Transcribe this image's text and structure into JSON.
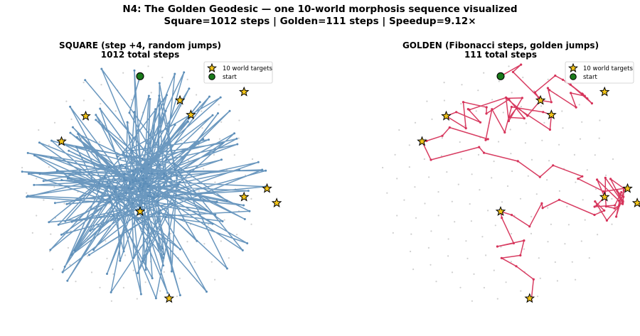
{
  "figure": {
    "title_line1": "N4: The Golden Geodesic — one 10-world morphosis sequence visualized",
    "title_line2": "Square=1012 steps  |  Golden=111 steps  |  Speedup=9.12×"
  },
  "chart_data": [
    {
      "type": "line",
      "title_line1": "SQUARE (step +4, random jumps)",
      "title_line2": "1012 total steps",
      "total_steps": 1012,
      "path_color": "#5b8db8",
      "grid_points": 144,
      "axes_visible": false,
      "xlim": [
        -1.05,
        1.05
      ],
      "ylim": [
        -1.05,
        1.05
      ],
      "start": {
        "x": 0.0,
        "y": 0.91
      },
      "targets": [
        {
          "x": 0.86,
          "y": 0.78
        },
        {
          "x": 0.33,
          "y": 0.71
        },
        {
          "x": -0.45,
          "y": 0.58
        },
        {
          "x": 0.42,
          "y": 0.59
        },
        {
          "x": -0.65,
          "y": 0.37
        },
        {
          "x": 1.05,
          "y": -0.02
        },
        {
          "x": 0.86,
          "y": -0.09
        },
        {
          "x": 1.13,
          "y": -0.14
        },
        {
          "x": 0.0,
          "y": -0.21
        },
        {
          "x": 0.24,
          "y": -0.93
        }
      ],
      "legend": {
        "position": "top-right",
        "entries": [
          {
            "label": "10 world targets",
            "marker": "star"
          },
          {
            "label": "start",
            "marker": "circle"
          }
        ]
      },
      "colors": {
        "target_fill": "#f2c41a",
        "start_fill": "#1a7a1a"
      }
    },
    {
      "type": "line",
      "title_line1": "GOLDEN (Fibonacci steps, golden jumps)",
      "title_line2": "111 total steps",
      "total_steps": 111,
      "path_color": "#d6335a",
      "grid_points": 144,
      "axes_visible": false,
      "xlim": [
        -1.05,
        1.05
      ],
      "ylim": [
        -1.05,
        1.05
      ],
      "start": {
        "x": 0.0,
        "y": 0.91
      },
      "targets": [
        {
          "x": 0.86,
          "y": 0.78
        },
        {
          "x": 0.33,
          "y": 0.71
        },
        {
          "x": -0.45,
          "y": 0.58
        },
        {
          "x": 0.42,
          "y": 0.59
        },
        {
          "x": -0.65,
          "y": 0.37
        },
        {
          "x": 1.05,
          "y": -0.02
        },
        {
          "x": 0.86,
          "y": -0.09
        },
        {
          "x": 1.13,
          "y": -0.14
        },
        {
          "x": 0.0,
          "y": -0.21
        },
        {
          "x": 0.24,
          "y": -0.93
        }
      ],
      "legend": {
        "position": "top-right",
        "entries": [
          {
            "label": "10 world targets",
            "marker": "star"
          },
          {
            "label": "start",
            "marker": "circle"
          }
        ]
      },
      "colors": {
        "target_fill": "#f2c41a",
        "start_fill": "#1a7a1a"
      }
    }
  ]
}
